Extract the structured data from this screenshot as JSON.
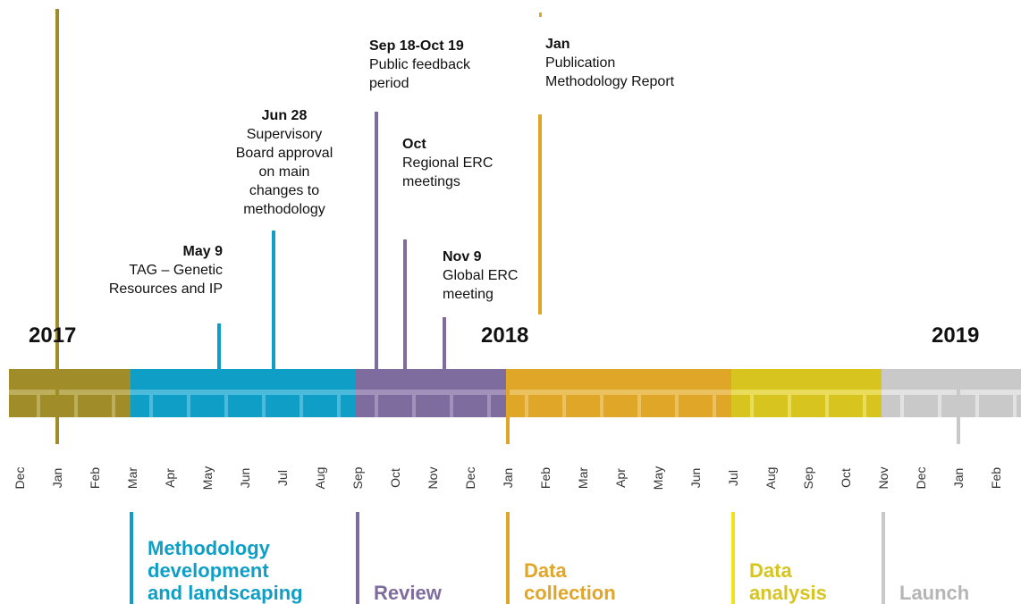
{
  "years": [
    "2017",
    "2018",
    "2019"
  ],
  "months": [
    "Dec",
    "Jan",
    "Feb",
    "Mar",
    "Apr",
    "May",
    "Jun",
    "Jul",
    "Aug",
    "Sep",
    "Oct",
    "Nov",
    "Dec",
    "Jan",
    "Feb",
    "Mar",
    "Apr",
    "May",
    "Jun",
    "Jul",
    "Aug",
    "Sep",
    "Oct",
    "Nov",
    "Dec",
    "Jan",
    "Feb"
  ],
  "events": [
    {
      "date": "May 9",
      "lines": [
        "TAG – Genetic",
        "Resources and IP"
      ]
    },
    {
      "date": "Jun 28",
      "lines": [
        "Supervisory",
        "Board approval",
        "on main",
        "changes to",
        "methodology"
      ]
    },
    {
      "date": "Sep 18-Oct 19",
      "lines": [
        "Public feedback",
        "period"
      ]
    },
    {
      "date": "Oct",
      "lines": [
        "Regional ERC",
        "meetings"
      ]
    },
    {
      "date": "Nov 9",
      "lines": [
        "Global ERC",
        "meeting"
      ]
    },
    {
      "date": "Jan",
      "lines": [
        "Publication",
        "Methodology Report"
      ]
    }
  ],
  "phases": [
    {
      "lines": [
        "Methodology",
        "development",
        "and landscaping"
      ]
    },
    {
      "lines": [
        "Review"
      ]
    },
    {
      "lines": [
        "Data",
        "collection"
      ]
    },
    {
      "lines": [
        "Data",
        "analysis"
      ]
    },
    {
      "lines": [
        "Launch"
      ]
    }
  ]
}
